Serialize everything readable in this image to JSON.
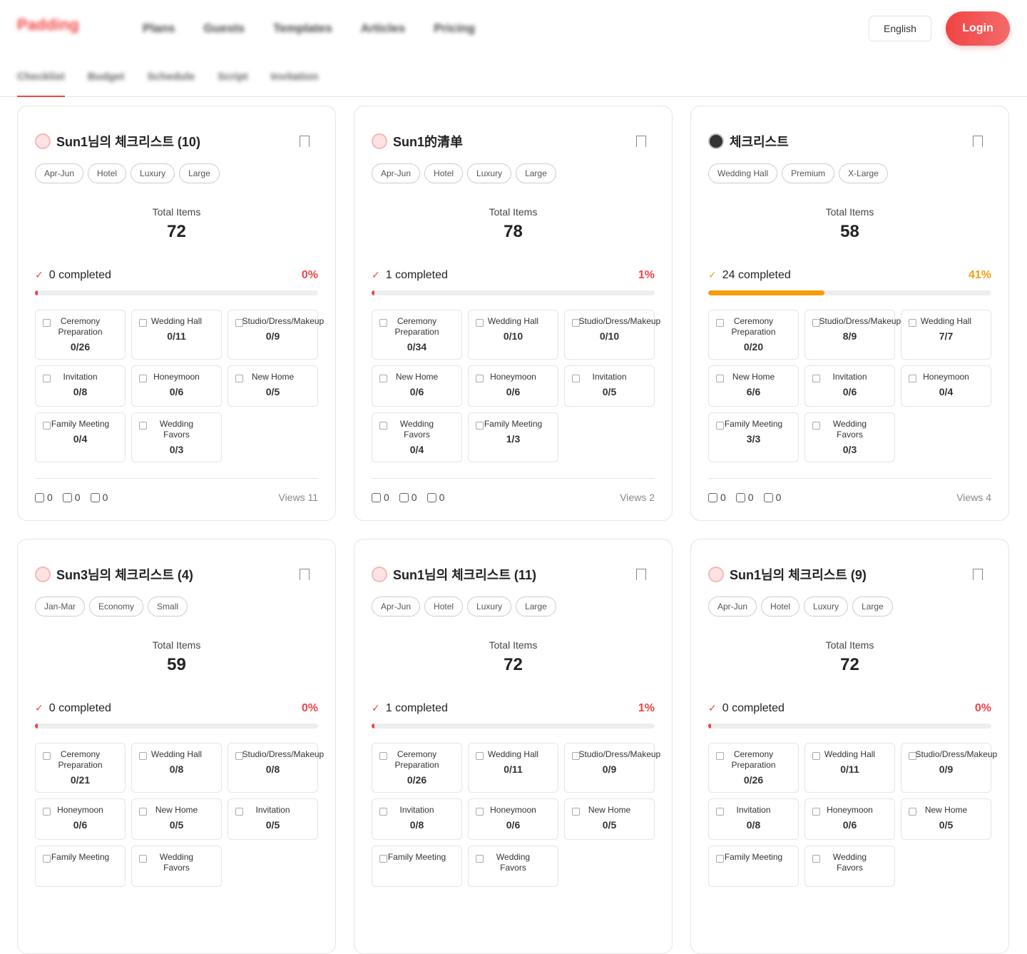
{
  "header": {
    "brand": "Padding",
    "nav": [
      "Plans",
      "Guests",
      "Templates",
      "Articles",
      "Pricing"
    ],
    "language": "English",
    "login": "Login"
  },
  "tabs": [
    "Checklist",
    "Budget",
    "Schedule",
    "Script",
    "Invitation"
  ],
  "cards": [
    {
      "title": "Sun1님의 체크리스트 (10)",
      "avatar": "pig",
      "tags": [
        "Apr-Jun",
        "Hotel",
        "Luxury",
        "Large"
      ],
      "total_label": "Total Items",
      "total": 72,
      "completed": "0 completed",
      "percent": "0%",
      "accent": "#f04444",
      "categories": [
        {
          "label": "Ceremony Preparation",
          "count": "0/26"
        },
        {
          "label": "Wedding Hall",
          "count": "0/11"
        },
        {
          "label": "Studio/Dress/Makeup",
          "count": "0/9"
        },
        {
          "label": "Invitation",
          "count": "0/8"
        },
        {
          "label": "Honeymoon",
          "count": "0/6"
        },
        {
          "label": "New Home",
          "count": "0/5"
        },
        {
          "label": "Family Meeting",
          "count": "0/4"
        },
        {
          "label": "Wedding Favors",
          "count": "0/3"
        }
      ],
      "likes": 0,
      "comments": 0,
      "bookmarks": 0,
      "views": "Views 11"
    },
    {
      "title": "Sun1的清单",
      "avatar": "pig",
      "tags": [
        "Apr-Jun",
        "Hotel",
        "Luxury",
        "Large"
      ],
      "total_label": "Total Items",
      "total": 78,
      "completed": "1 completed",
      "percent": "1%",
      "accent": "#f04444",
      "categories": [
        {
          "label": "Ceremony Preparation",
          "count": "0/34"
        },
        {
          "label": "Wedding Hall",
          "count": "0/10"
        },
        {
          "label": "Studio/Dress/Makeup",
          "count": "0/10"
        },
        {
          "label": "New Home",
          "count": "0/6"
        },
        {
          "label": "Honeymoon",
          "count": "0/6"
        },
        {
          "label": "Invitation",
          "count": "0/5"
        },
        {
          "label": "Wedding Favors",
          "count": "0/4"
        },
        {
          "label": "Family Meeting",
          "count": "1/3"
        }
      ],
      "likes": 0,
      "comments": 0,
      "bookmarks": 0,
      "views": "Views 2"
    },
    {
      "title": "체크리스트",
      "avatar": "person",
      "tags": [
        "Wedding Hall",
        "Premium",
        "X-Large"
      ],
      "total_label": "Total Items",
      "total": 58,
      "completed": "24 completed",
      "percent": "41%",
      "accent": "#f59e0b",
      "categories": [
        {
          "label": "Ceremony Preparation",
          "count": "0/20"
        },
        {
          "label": "Studio/Dress/Makeup",
          "count": "8/9"
        },
        {
          "label": "Wedding Hall",
          "count": "7/7"
        },
        {
          "label": "New Home",
          "count": "6/6"
        },
        {
          "label": "Invitation",
          "count": "0/6"
        },
        {
          "label": "Honeymoon",
          "count": "0/4"
        },
        {
          "label": "Family Meeting",
          "count": "3/3"
        },
        {
          "label": "Wedding Favors",
          "count": "0/3"
        }
      ],
      "likes": 0,
      "comments": 0,
      "bookmarks": 0,
      "views": "Views 4"
    },
    {
      "title": "Sun3님의 체크리스트 (4)",
      "avatar": "pig",
      "tags": [
        "Jan-Mar",
        "Economy",
        "Small"
      ],
      "total_label": "Total Items",
      "total": 59,
      "completed": "0 completed",
      "percent": "0%",
      "accent": "#f04444",
      "categories": [
        {
          "label": "Ceremony Preparation",
          "count": "0/21"
        },
        {
          "label": "Wedding Hall",
          "count": "0/8"
        },
        {
          "label": "Studio/Dress/Makeup",
          "count": "0/8"
        },
        {
          "label": "Honeymoon",
          "count": "0/6"
        },
        {
          "label": "New Home",
          "count": "0/5"
        },
        {
          "label": "Invitation",
          "count": "0/5"
        },
        {
          "label": "Family Meeting"
        },
        {
          "label": "Wedding Favors"
        }
      ]
    },
    {
      "title": "Sun1님의 체크리스트 (11)",
      "avatar": "pig",
      "tags": [
        "Apr-Jun",
        "Hotel",
        "Luxury",
        "Large"
      ],
      "total_label": "Total Items",
      "total": 72,
      "completed": "1 completed",
      "percent": "1%",
      "accent": "#f04444",
      "categories": [
        {
          "label": "Ceremony Preparation",
          "count": "0/26"
        },
        {
          "label": "Wedding Hall",
          "count": "0/11"
        },
        {
          "label": "Studio/Dress/Makeup",
          "count": "0/9"
        },
        {
          "label": "Invitation",
          "count": "0/8"
        },
        {
          "label": "Honeymoon",
          "count": "0/6"
        },
        {
          "label": "New Home",
          "count": "0/5"
        },
        {
          "label": "Family Meeting"
        },
        {
          "label": "Wedding Favors"
        }
      ]
    },
    {
      "title": "Sun1님의 체크리스트 (9)",
      "avatar": "pig",
      "tags": [
        "Apr-Jun",
        "Hotel",
        "Luxury",
        "Large"
      ],
      "total_label": "Total Items",
      "total": 72,
      "completed": "0 completed",
      "percent": "0%",
      "accent": "#f04444",
      "categories": [
        {
          "label": "Ceremony Preparation",
          "count": "0/26"
        },
        {
          "label": "Wedding Hall",
          "count": "0/11"
        },
        {
          "label": "Studio/Dress/Makeup",
          "count": "0/9"
        },
        {
          "label": "Invitation",
          "count": "0/8"
        },
        {
          "label": "Honeymoon",
          "count": "0/6"
        },
        {
          "label": "New Home",
          "count": "0/5"
        },
        {
          "label": "Family Meeting"
        },
        {
          "label": "Wedding Favors"
        }
      ]
    }
  ]
}
